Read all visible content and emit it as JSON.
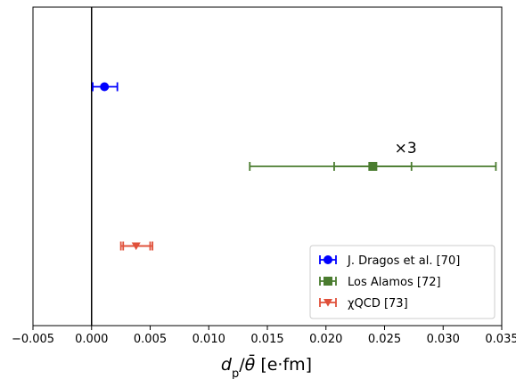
{
  "chart_data": {
    "type": "scatter",
    "title": "",
    "xlabel": "d_p / θ̄ [e·fm]",
    "xlabel_parts": {
      "main": "d",
      "sub": "p",
      "slash": "/",
      "theta": "θ̄",
      "unit": " [e·fm]"
    },
    "ylabel": "",
    "xlim": [
      -0.005,
      0.035
    ],
    "x_ticks": [
      -0.005,
      0.0,
      0.005,
      0.01,
      0.015,
      0.02,
      0.025,
      0.03,
      0.035
    ],
    "x_tick_labels": [
      "−0.005",
      "0.000",
      "0.005",
      "0.010",
      "0.015",
      "0.020",
      "0.025",
      "0.030",
      "0.035"
    ],
    "y_positions": [
      3,
      2,
      1
    ],
    "ylim": [
      0,
      4
    ],
    "grid": false,
    "reference_line_x": 0.0,
    "legend_position": "lower-right",
    "series": [
      {
        "name": "J. Dragos et al. [70]",
        "color": "#0000ff",
        "marker": "circle",
        "y": 3,
        "x": 0.0011,
        "errors": [
          {
            "low": 0.0001,
            "high": 0.0022
          }
        ]
      },
      {
        "name": "Los Alamos [72]",
        "color": "#4a7c2f",
        "marker": "square",
        "y": 2,
        "x": 0.024,
        "errors": [
          {
            "low": 0.0207,
            "high": 0.0273
          },
          {
            "low": 0.0135,
            "high": 0.0345
          }
        ]
      },
      {
        "name": "χQCD [73]",
        "color": "#e0503a",
        "marker": "triangle-down",
        "y": 1,
        "x": 0.0038,
        "errors": [
          {
            "low": 0.0027,
            "high": 0.005
          },
          {
            "low": 0.0025,
            "high": 0.0052
          }
        ]
      }
    ],
    "annotations": [
      {
        "text": "×3",
        "x": 0.0268,
        "y": 2.17
      }
    ]
  }
}
